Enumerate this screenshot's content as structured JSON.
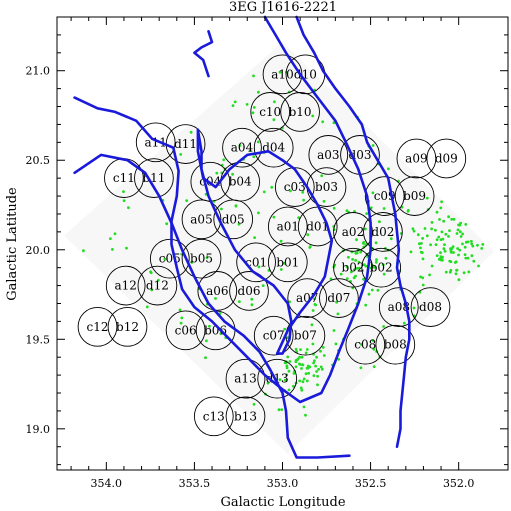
{
  "chart_data": {
    "type": "scatter",
    "title": "3EG J1616-2221",
    "xlabel": "Galactic Longitude",
    "ylabel": "Galactic Latitude",
    "xlim": [
      354.28,
      351.72
    ],
    "ylim": [
      18.77,
      21.3
    ],
    "x_reversed": true,
    "x_ticks": [
      "354.0",
      "353.5",
      "353.0",
      "352.5",
      "352.0"
    ],
    "y_ticks": [
      "19.0",
      "19.5",
      "20.0",
      "20.5",
      "21.0"
    ],
    "coverage_footprint": [
      [
        354.24,
        20.08
      ],
      [
        353.0,
        21.16
      ],
      [
        351.8,
        19.99
      ],
      [
        352.97,
        18.86
      ]
    ],
    "field_radius_deg": 0.11,
    "fields": [
      {
        "label": "a10",
        "l": 353.0,
        "b": 20.98
      },
      {
        "label": "d10",
        "l": 352.87,
        "b": 20.98
      },
      {
        "label": "c10",
        "l": 353.07,
        "b": 20.77
      },
      {
        "label": "b10",
        "l": 352.9,
        "b": 20.77
      },
      {
        "label": "a11",
        "l": 353.72,
        "b": 20.6
      },
      {
        "label": "d11",
        "l": 353.55,
        "b": 20.59
      },
      {
        "label": "a04",
        "l": 353.23,
        "b": 20.57
      },
      {
        "label": "d04",
        "l": 353.05,
        "b": 20.57
      },
      {
        "label": "a03",
        "l": 352.74,
        "b": 20.53
      },
      {
        "label": "d03",
        "l": 352.56,
        "b": 20.53
      },
      {
        "label": "a09",
        "l": 352.24,
        "b": 20.51
      },
      {
        "label": "d09",
        "l": 352.07,
        "b": 20.51
      },
      {
        "label": "c11",
        "l": 353.9,
        "b": 20.4
      },
      {
        "label": "b11",
        "l": 353.73,
        "b": 20.4
      },
      {
        "label": "c04",
        "l": 353.41,
        "b": 20.38
      },
      {
        "label": "b04",
        "l": 353.24,
        "b": 20.38
      },
      {
        "label": "c03",
        "l": 352.93,
        "b": 20.35
      },
      {
        "label": "b03",
        "l": 352.75,
        "b": 20.35
      },
      {
        "label": "c09",
        "l": 352.42,
        "b": 20.3
      },
      {
        "label": "b09",
        "l": 352.25,
        "b": 20.3
      },
      {
        "label": "a05",
        "l": 353.46,
        "b": 20.17
      },
      {
        "label": "d05",
        "l": 353.28,
        "b": 20.17
      },
      {
        "label": "a01",
        "l": 352.97,
        "b": 20.13
      },
      {
        "label": "d01",
        "l": 352.8,
        "b": 20.13
      },
      {
        "label": "a02",
        "l": 352.6,
        "b": 20.1
      },
      {
        "label": "d02",
        "l": 352.43,
        "b": 20.1
      },
      {
        "label": "c05",
        "l": 353.64,
        "b": 19.95
      },
      {
        "label": "b05",
        "l": 353.46,
        "b": 19.95
      },
      {
        "label": "c01",
        "l": 353.15,
        "b": 19.93
      },
      {
        "label": "b01",
        "l": 352.97,
        "b": 19.93
      },
      {
        "label": "b02",
        "l": 352.6,
        "b": 19.9
      },
      {
        "label": "b02",
        "l": 352.44,
        "b": 19.9
      },
      {
        "label": "a12",
        "l": 353.89,
        "b": 19.8
      },
      {
        "label": "d12",
        "l": 353.71,
        "b": 19.8
      },
      {
        "label": "a06",
        "l": 353.37,
        "b": 19.77
      },
      {
        "label": "d06",
        "l": 353.19,
        "b": 19.77
      },
      {
        "label": "a07",
        "l": 352.86,
        "b": 19.73
      },
      {
        "label": "d07",
        "l": 352.68,
        "b": 19.73
      },
      {
        "label": "a08",
        "l": 352.34,
        "b": 19.68
      },
      {
        "label": "d08",
        "l": 352.16,
        "b": 19.68
      },
      {
        "label": "c12",
        "l": 354.05,
        "b": 19.57
      },
      {
        "label": "b12",
        "l": 353.88,
        "b": 19.57
      },
      {
        "label": "c06",
        "l": 353.55,
        "b": 19.55
      },
      {
        "label": "b06",
        "l": 353.38,
        "b": 19.55
      },
      {
        "label": "c07",
        "l": 353.05,
        "b": 19.52
      },
      {
        "label": "b07",
        "l": 352.87,
        "b": 19.52
      },
      {
        "label": "c08",
        "l": 352.53,
        "b": 19.47
      },
      {
        "label": "b08",
        "l": 352.36,
        "b": 19.47
      },
      {
        "label": "a13",
        "l": 353.21,
        "b": 19.28
      },
      {
        "label": "d13",
        "l": 353.03,
        "b": 19.28
      },
      {
        "label": "c13",
        "l": 353.39,
        "b": 19.07
      },
      {
        "label": "b13",
        "l": 353.21,
        "b": 19.07
      }
    ],
    "contours": [
      [
        [
          353.42,
          21.22
        ],
        [
          353.4,
          21.16
        ],
        [
          353.46,
          21.13
        ],
        [
          353.5,
          21.1
        ],
        [
          353.45,
          21.06
        ],
        [
          353.42,
          20.97
        ]
      ],
      [
        [
          353.1,
          21.3
        ],
        [
          353.04,
          21.2
        ],
        [
          352.98,
          21.1
        ],
        [
          352.9,
          20.98
        ],
        [
          352.8,
          20.85
        ],
        [
          352.7,
          20.72
        ],
        [
          352.64,
          20.6
        ],
        [
          352.57,
          20.45
        ],
        [
          352.52,
          20.3
        ],
        [
          352.5,
          20.15
        ],
        [
          352.5,
          20.0
        ],
        [
          352.52,
          19.85
        ],
        [
          352.57,
          19.7
        ],
        [
          352.63,
          19.55
        ],
        [
          352.68,
          19.43
        ],
        [
          352.73,
          19.3
        ],
        [
          352.78,
          19.2
        ],
        [
          352.9,
          19.15
        ],
        [
          353.0,
          19.22
        ],
        [
          353.1,
          19.3
        ],
        [
          353.2,
          19.4
        ],
        [
          353.3,
          19.5
        ],
        [
          353.4,
          19.6
        ],
        [
          353.5,
          19.68
        ],
        [
          353.57,
          19.78
        ],
        [
          353.6,
          19.9
        ],
        [
          353.63,
          20.03
        ],
        [
          353.63,
          20.16
        ],
        [
          353.6,
          20.3
        ],
        [
          353.59,
          20.44
        ],
        [
          353.62,
          20.57
        ],
        [
          353.74,
          20.62
        ],
        [
          353.83,
          20.72
        ],
        [
          353.95,
          20.77
        ],
        [
          354.05,
          20.79
        ],
        [
          354.18,
          20.85
        ]
      ],
      [
        [
          352.92,
          21.3
        ],
        [
          352.88,
          21.2
        ],
        [
          352.82,
          21.1
        ],
        [
          352.77,
          21.0
        ],
        [
          352.7,
          20.9
        ],
        [
          352.62,
          20.8
        ],
        [
          352.55,
          20.7
        ],
        [
          352.52,
          20.6
        ],
        [
          352.46,
          20.5
        ],
        [
          352.4,
          20.4
        ],
        [
          352.38,
          20.3
        ],
        [
          352.36,
          20.2
        ],
        [
          352.35,
          20.1
        ],
        [
          352.34,
          20.0
        ],
        [
          352.35,
          19.9
        ],
        [
          352.33,
          19.8
        ],
        [
          352.3,
          19.7
        ],
        [
          352.28,
          19.6
        ],
        [
          352.28,
          19.5
        ],
        [
          352.3,
          19.4
        ],
        [
          352.31,
          19.3
        ],
        [
          352.32,
          19.2
        ],
        [
          352.33,
          19.1
        ],
        [
          352.33,
          19.0
        ],
        [
          352.35,
          18.9
        ]
      ],
      [
        [
          354.18,
          20.43
        ],
        [
          354.03,
          20.53
        ],
        [
          353.88,
          20.5
        ],
        [
          353.78,
          20.43
        ],
        [
          353.7,
          20.3
        ],
        [
          353.63,
          20.15
        ],
        [
          353.57,
          20.0
        ],
        [
          353.5,
          19.85
        ],
        [
          353.42,
          19.7
        ],
        [
          353.33,
          19.6
        ],
        [
          353.22,
          19.52
        ],
        [
          353.13,
          19.43
        ],
        [
          353.07,
          19.33
        ],
        [
          353.0,
          19.2
        ],
        [
          352.98,
          19.1
        ],
        [
          352.97,
          18.95
        ],
        [
          352.92,
          18.84
        ],
        [
          352.8,
          18.84
        ],
        [
          352.62,
          18.85
        ]
      ],
      [
        [
          353.48,
          20.67
        ],
        [
          353.46,
          20.55
        ],
        [
          353.46,
          20.45
        ],
        [
          353.42,
          20.3
        ],
        [
          353.35,
          20.15
        ],
        [
          353.27,
          20.0
        ],
        [
          353.17,
          19.88
        ],
        [
          353.05,
          19.8
        ],
        [
          352.97,
          19.7
        ],
        [
          352.95,
          19.6
        ],
        [
          352.96,
          19.5
        ],
        [
          353.0,
          19.42
        ],
        [
          353.03,
          19.42
        ],
        [
          352.97,
          19.55
        ],
        [
          352.9,
          19.65
        ],
        [
          352.82,
          19.75
        ],
        [
          352.76,
          19.85
        ],
        [
          352.74,
          19.95
        ],
        [
          352.72,
          20.05
        ],
        [
          352.75,
          20.15
        ],
        [
          352.8,
          20.25
        ],
        [
          352.86,
          20.35
        ],
        [
          352.93,
          20.45
        ],
        [
          353.0,
          20.5
        ],
        [
          353.08,
          20.55
        ],
        [
          353.2,
          20.53
        ],
        [
          353.3,
          20.45
        ],
        [
          353.38,
          20.35
        ],
        [
          353.45,
          20.4
        ],
        [
          353.48,
          20.55
        ],
        [
          353.48,
          20.67
        ]
      ]
    ],
    "colors": {
      "fields": "#000000",
      "contours": "#1a1adb",
      "events": "#22dd22",
      "footprint": "#f7f7f7"
    },
    "events_note_color": "#22dd22",
    "grid": false,
    "legend": "none"
  }
}
